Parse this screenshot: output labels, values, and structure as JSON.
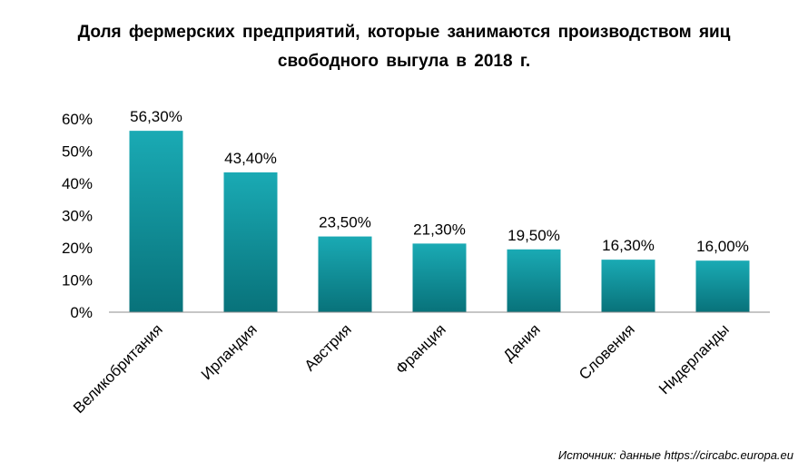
{
  "title_line1": "Доля фермерских предприятий, которые занимаются производством яиц",
  "title_line2": "свободного выгула в 2018 г.",
  "source": "Источник: данные https://circabc.europa.eu",
  "chart_data": {
    "type": "bar",
    "categories": [
      "Великобритания",
      "Ирландия",
      "Австрия",
      "Франция",
      "Дания",
      "Словения",
      "Нидерланды"
    ],
    "values": [
      56.3,
      43.4,
      23.5,
      21.3,
      19.5,
      16.3,
      16.0
    ],
    "value_labels": [
      "56,30%",
      "43,40%",
      "23,50%",
      "21,30%",
      "19,50%",
      "16,30%",
      "16,00%"
    ],
    "y_ticks": [
      "0%",
      "10%",
      "20%",
      "30%",
      "40%",
      "50%",
      "60%"
    ],
    "ylim": [
      0,
      60
    ],
    "grid": false,
    "colors": {
      "bar_top": "#1aaab4",
      "bar_bottom": "#08727a"
    }
  }
}
